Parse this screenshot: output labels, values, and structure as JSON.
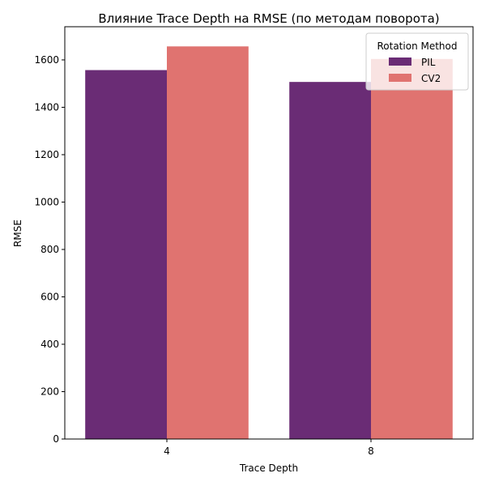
{
  "chart_data": {
    "type": "bar",
    "title": "Влияние Trace Depth на RMSE (по методам поворота)",
    "xlabel": "Trace Depth",
    "ylabel": "RMSE",
    "categories": [
      "4",
      "8"
    ],
    "ylim": [
      0,
      1740
    ],
    "yticks": [
      0,
      200,
      400,
      600,
      800,
      1000,
      1200,
      1400,
      1600
    ],
    "grid": false,
    "legend": {
      "title": "Rotation Method",
      "placement": "top-right"
    },
    "series": [
      {
        "name": "PIL",
        "color": "#6a2c75",
        "values": [
          1557,
          1507
        ]
      },
      {
        "name": "CV2",
        "color": "#e07370",
        "values": [
          1657,
          1604
        ]
      }
    ]
  }
}
